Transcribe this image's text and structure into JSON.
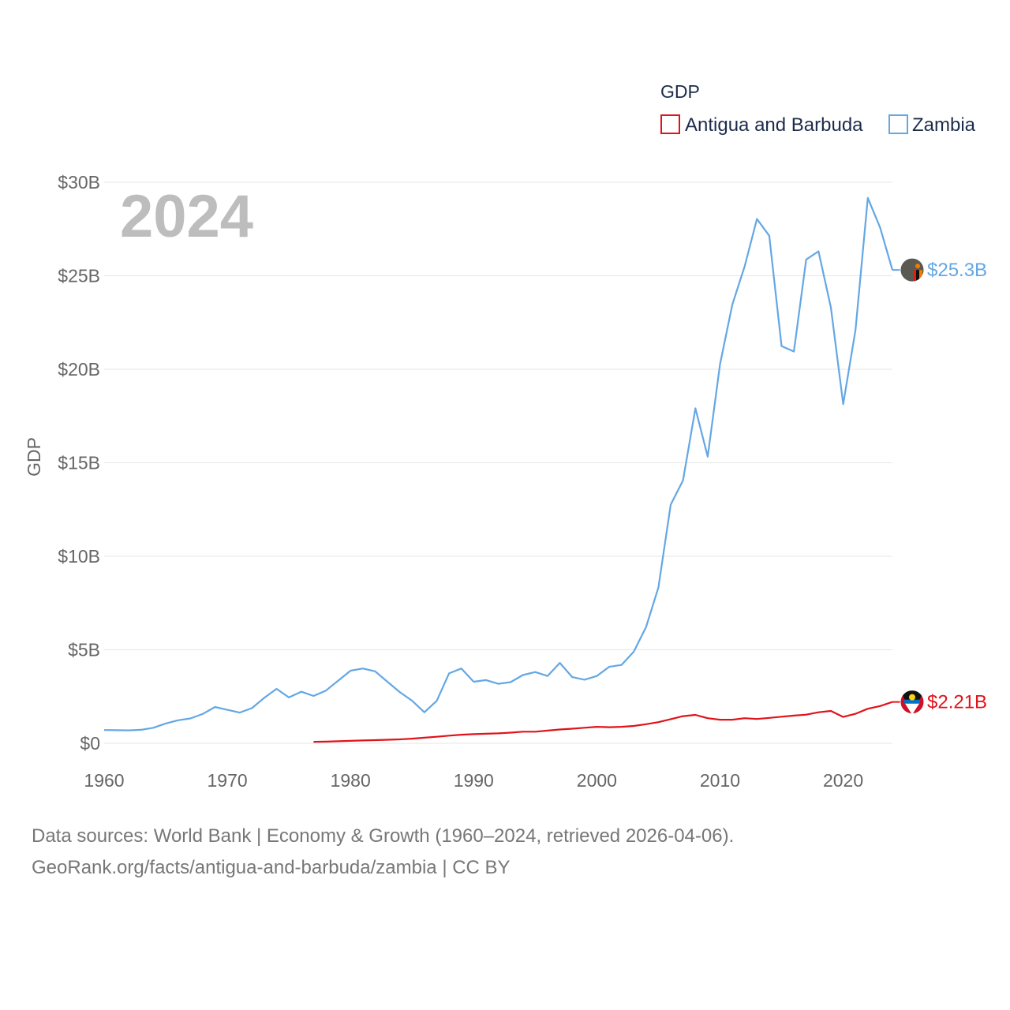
{
  "colors": {
    "antigua": "#e0131a",
    "zambia": "#63a7e4",
    "tick": "#666666",
    "grid": "#e6e6e6"
  },
  "footer": {
    "line1": "Data sources: World Bank | Economy & Growth (1960–2024, retrieved 2026-04-06).",
    "line2": "GeoRank.org/facts/antigua-and-barbuda/zambia | CC BY"
  },
  "chart_data": {
    "type": "line",
    "title": "",
    "year_badge": "2024",
    "xlabel": "",
    "ylabel": "GDP",
    "xlim": [
      1960,
      2024
    ],
    "ylim": [
      0,
      30
    ],
    "y_ticks": [
      {
        "value": 0,
        "label": "$0"
      },
      {
        "value": 5,
        "label": "$5B"
      },
      {
        "value": 10,
        "label": "$10B"
      },
      {
        "value": 15,
        "label": "$15B"
      },
      {
        "value": 20,
        "label": "$20B"
      },
      {
        "value": 25,
        "label": "$25B"
      },
      {
        "value": 30,
        "label": "$30B"
      }
    ],
    "x_ticks": [
      {
        "value": 1960,
        "label": "1960"
      },
      {
        "value": 1970,
        "label": "1970"
      },
      {
        "value": 1980,
        "label": "1980"
      },
      {
        "value": 1990,
        "label": "1990"
      },
      {
        "value": 2000,
        "label": "2000"
      },
      {
        "value": 2010,
        "label": "2010"
      },
      {
        "value": 2020,
        "label": "2020"
      }
    ],
    "legend": {
      "title": "GDP",
      "position": "top-right"
    },
    "units": "billions USD",
    "series": [
      {
        "name": "Antigua and Barbuda",
        "key": "antigua",
        "end_label": "$2.21B",
        "flag_icon": "antigua-and-barbuda-flag-icon",
        "x": [
          1977,
          1978,
          1979,
          1980,
          1981,
          1982,
          1983,
          1984,
          1985,
          1986,
          1987,
          1988,
          1989,
          1990,
          1991,
          1992,
          1993,
          1994,
          1995,
          1996,
          1997,
          1998,
          1999,
          2000,
          2001,
          2002,
          2003,
          2004,
          2005,
          2006,
          2007,
          2008,
          2009,
          2010,
          2011,
          2012,
          2013,
          2014,
          2015,
          2016,
          2017,
          2018,
          2019,
          2020,
          2021,
          2022,
          2023,
          2024
        ],
        "values": [
          0.08,
          0.09,
          0.11,
          0.13,
          0.15,
          0.17,
          0.19,
          0.21,
          0.25,
          0.3,
          0.35,
          0.41,
          0.46,
          0.49,
          0.51,
          0.53,
          0.57,
          0.62,
          0.62,
          0.68,
          0.74,
          0.78,
          0.83,
          0.88,
          0.86,
          0.88,
          0.93,
          1.02,
          1.13,
          1.29,
          1.45,
          1.52,
          1.34,
          1.26,
          1.26,
          1.34,
          1.3,
          1.36,
          1.42,
          1.48,
          1.53,
          1.66,
          1.73,
          1.41,
          1.58,
          1.85,
          1.99,
          2.21
        ]
      },
      {
        "name": "Zambia",
        "key": "zambia",
        "end_label": "$25.3B",
        "flag_icon": "zambia-flag-icon",
        "x": [
          1960,
          1961,
          1962,
          1963,
          1964,
          1965,
          1966,
          1967,
          1968,
          1969,
          1970,
          1971,
          1972,
          1973,
          1974,
          1975,
          1976,
          1977,
          1978,
          1979,
          1980,
          1981,
          1982,
          1983,
          1984,
          1985,
          1986,
          1987,
          1988,
          1989,
          1990,
          1991,
          1992,
          1993,
          1994,
          1995,
          1996,
          1997,
          1998,
          1999,
          2000,
          2001,
          2002,
          2003,
          2004,
          2005,
          2006,
          2007,
          2008,
          2009,
          2010,
          2011,
          2012,
          2013,
          2014,
          2015,
          2016,
          2017,
          2018,
          2019,
          2020,
          2021,
          2022,
          2023,
          2024
        ],
        "values": [
          0.71,
          0.7,
          0.69,
          0.72,
          0.83,
          1.06,
          1.23,
          1.33,
          1.57,
          1.94,
          1.79,
          1.64,
          1.88,
          2.43,
          2.91,
          2.45,
          2.76,
          2.53,
          2.82,
          3.35,
          3.88,
          4.0,
          3.85,
          3.29,
          2.74,
          2.28,
          1.66,
          2.27,
          3.74,
          4.0,
          3.29,
          3.38,
          3.18,
          3.27,
          3.65,
          3.81,
          3.6,
          4.3,
          3.54,
          3.4,
          3.6,
          4.09,
          4.19,
          4.9,
          6.22,
          8.33,
          12.76,
          14.06,
          17.91,
          15.33,
          20.27,
          23.46,
          25.5,
          28.04,
          27.14,
          21.24,
          20.95,
          25.87,
          26.31,
          23.31,
          18.14,
          22.1,
          29.16,
          27.58,
          25.31
        ]
      }
    ]
  }
}
